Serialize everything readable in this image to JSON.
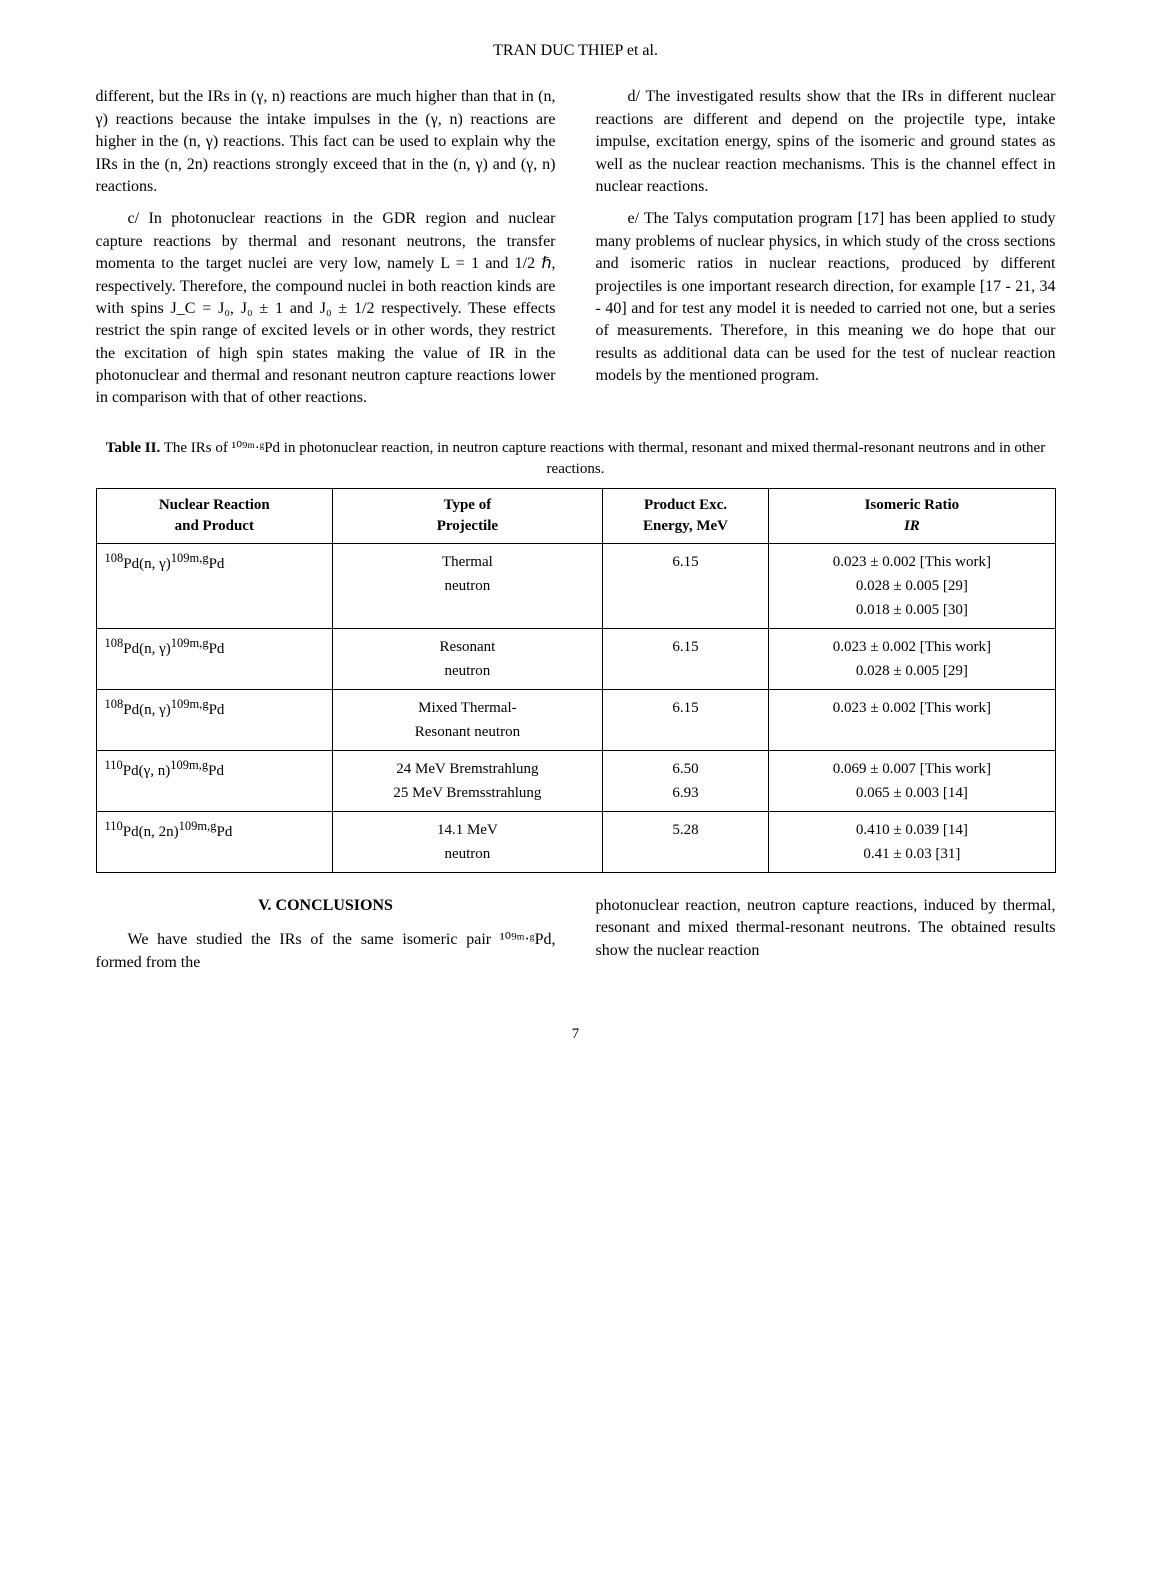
{
  "header": {
    "running_head": "TRAN DUC THIEP et al."
  },
  "body": {
    "left": {
      "p1": "different, but the IRs in (γ, n) reactions are much higher than that in (n, γ) reactions because the intake impulses in the (γ, n) reactions are higher in the (n, γ) reactions. This fact can be used to explain why the IRs in the (n, 2n) reactions strongly exceed that in the (n, γ) and (γ, n) reactions.",
      "p2": "c/ In photonuclear reactions in the GDR region and nuclear capture reactions by thermal and resonant neutrons, the transfer momenta to the target nuclei are very low, namely L = 1 and 1/2 ℏ, respectively. Therefore, the compound nuclei in both reaction kinds are with spins J_C = J₀, J₀ ± 1 and J₀ ± 1/2 respectively. These effects restrict the spin range of excited levels or in other words, they restrict the excitation of high spin states making the value of IR in the photonuclear and thermal and resonant neutron capture reactions lower in comparison with that of other reactions."
    },
    "right": {
      "p1": "d/ The investigated results show that the IRs in different nuclear reactions are different and depend on the projectile type, intake impulse, excitation energy, spins of the isomeric and ground states as well as the nuclear reaction mechanisms. This is the channel effect in nuclear reactions.",
      "p2": "e/ The Talys computation program [17] has been applied to study many problems of nuclear physics, in which study of the cross sections and isomeric ratios in nuclear reactions, produced by different projectiles is one important research direction, for example [17 - 21, 34 - 40] and for test any model it is needed to carried not one, but a series of measurements. Therefore, in this meaning we do hope that our results as additional data can be used for the test of nuclear reaction models by the mentioned program."
    }
  },
  "table": {
    "caption_prefix": "Table II.",
    "caption_text": " The IRs of ¹⁰⁹ᵐ·ᵍPd in photonuclear reaction, in neutron capture reactions with thermal, resonant and mixed thermal-resonant neutrons and in other reactions.",
    "headers": {
      "col1a": "Nuclear Reaction",
      "col1b": "and Product",
      "col2a": "Type of",
      "col2b": "Projectile",
      "col3a": "Product Exc.",
      "col3b": "Energy, MeV",
      "col4a": "Isomeric Ratio",
      "col4b": "IR"
    },
    "rows": [
      {
        "reaction_html": "<sup>108</sup>Pd(n, γ)<sup>109m,g</sup>Pd",
        "projectile": "Thermal\nneutron",
        "energy": "6.15",
        "ir": "0.023 ± 0.002 [This work]\n0.028 ± 0.005 [29]\n0.018 ± 0.005 [30]"
      },
      {
        "reaction_html": "<sup>108</sup>Pd(n, γ)<sup>109m,g</sup>Pd",
        "projectile": "Resonant\nneutron",
        "energy": "6.15",
        "ir": "0.023 ± 0.002 [This work]\n0.028 ± 0.005 [29]"
      },
      {
        "reaction_html": "<sup>108</sup>Pd(n, γ)<sup>109m,g</sup>Pd",
        "projectile": "Mixed Thermal-\nResonant neutron",
        "energy": "6.15",
        "ir": "0.023 ± 0.002 [This work]"
      },
      {
        "reaction_html": "<sup>110</sup>Pd(γ, n)<sup>109m,g</sup>Pd",
        "projectile": "24 MeV Bremstrahlung\n25 MeV Bremsstrahlung",
        "energy": "6.50\n6.93",
        "ir": "0.069 ± 0.007 [This work]\n0.065 ± 0.003 [14]"
      },
      {
        "reaction_html": "<sup>110</sup>Pd(n, 2n)<sup>109m,g</sup>Pd",
        "projectile": "14.1 MeV\nneutron",
        "energy": "5.28",
        "ir": "0.410 ± 0.039 [14]\n0.41 ± 0.03 [31]"
      }
    ]
  },
  "conclusions": {
    "heading": "V. CONCLUSIONS",
    "left_p1": "We have studied the IRs of the same isomeric pair ¹⁰⁹ᵐ·ᵍPd, formed from the",
    "right_p1": "photonuclear reaction, neutron capture reactions, induced by thermal, resonant and mixed thermal-resonant neutrons. The obtained results show the nuclear reaction"
  },
  "page_number": "7"
}
